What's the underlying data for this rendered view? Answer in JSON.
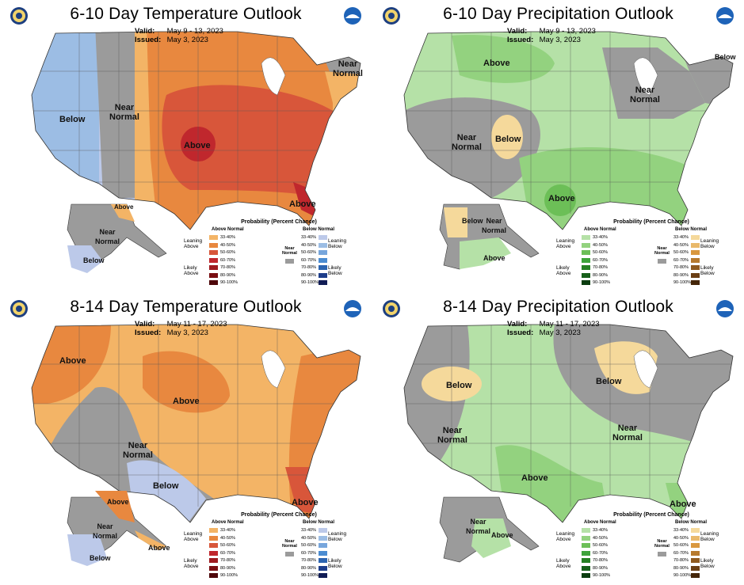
{
  "colors": {
    "gray": "#9b9b9b",
    "t_lean": "#f3b466",
    "t_40": "#e8883f",
    "t_50": "#d8563a",
    "t_60": "#c0272d",
    "t_70": "#9e1a1f",
    "t_80": "#7a0e12",
    "t_90": "#4e070a",
    "cold_33": "#bcc9e9",
    "cold_40": "#9cbde4",
    "cold_50": "#77a6dc",
    "cold_60": "#4b8cd1",
    "cold_70": "#2c64b0",
    "cold_80": "#1d3d8a",
    "cold_90": "#101c55",
    "wet_33": "#b5e1a7",
    "wet_40": "#93d27f",
    "wet_50": "#6cbf57",
    "wet_60": "#3ea33a",
    "wet_70": "#268023",
    "wet_80": "#17601a",
    "wet_90": "#0b3d10",
    "dry_33": "#f5d99b",
    "dry_40": "#e9b96b",
    "dry_50": "#d9983f",
    "dry_60": "#b77a2e",
    "dry_70": "#8f5a1f",
    "dry_80": "#6b3f14",
    "dry_90": "#442508"
  },
  "panels": [
    {
      "title": "6-10 Day Temperature Outlook",
      "valid_label": "Valid:",
      "valid_value": "May 9 - 13, 2023",
      "issued_label": "Issued:",
      "issued_value": "May 3, 2023",
      "labels": [
        "Below",
        "Near\nNormal",
        "Above",
        "Near\nNormal",
        "Above",
        "Above",
        "Near\nNormal",
        "Below"
      ],
      "legend": {
        "title": "Probability (Percent Chance)",
        "left_header": "Above Normal",
        "right_header": "Below Normal",
        "left_side_top": "Leaning\nAbove",
        "left_side_bottom": "Likely\nAbove",
        "right_side_top": "Leaning\nBelow",
        "right_side_bottom": "Likely\nBelow",
        "near_normal": "Near\nNormal",
        "bins": [
          "33-40%",
          "40-50%",
          "50-60%",
          "60-70%",
          "70-80%",
          "80-90%",
          "90-100%"
        ]
      }
    },
    {
      "title": "6-10 Day Precipitation Outlook",
      "valid_label": "Valid:",
      "valid_value": "May 9 - 13, 2023",
      "issued_label": "Issued:",
      "issued_value": "May 3, 2023",
      "labels": [
        "Above",
        "Near\nNormal",
        "Below",
        "Below",
        "Near\nNormal",
        "Above",
        "Below",
        "Near\nNormal",
        "Above"
      ],
      "legend": {
        "title": "Probability (Percent Chance)",
        "left_header": "Above Normal",
        "right_header": "Below Normal",
        "left_side_top": "Leaning\nAbove",
        "left_side_bottom": "Likely\nAbove",
        "right_side_top": "Leaning\nBelow",
        "right_side_bottom": "Likely\nBelow",
        "near_normal": "Near\nNormal",
        "bins": [
          "33-40%",
          "40-50%",
          "50-60%",
          "60-70%",
          "70-80%",
          "80-90%",
          "90-100%"
        ]
      }
    },
    {
      "title": "8-14 Day Temperature Outlook",
      "valid_label": "Valid:",
      "valid_value": "May 11 - 17, 2023",
      "issued_label": "Issued:",
      "issued_value": "May 3, 2023",
      "labels": [
        "Above",
        "Above",
        "Near\nNormal",
        "Below",
        "Above",
        "Above",
        "Near\nNormal",
        "Above",
        "Below"
      ],
      "legend": {
        "title": "Probability (Percent Chance)",
        "left_header": "Above Normal",
        "right_header": "Below Normal",
        "left_side_top": "Leaning\nAbove",
        "left_side_bottom": "Likely\nAbove",
        "right_side_top": "Leaning\nBelow",
        "right_side_bottom": "Likely\nBelow",
        "near_normal": "Near\nNormal",
        "bins": [
          "33-40%",
          "40-50%",
          "50-60%",
          "60-70%",
          "70-80%",
          "80-90%",
          "90-100%"
        ]
      }
    },
    {
      "title": "8-14 Day Precipitation Outlook",
      "valid_label": "Valid:",
      "valid_value": "May 11 - 17, 2023",
      "issued_label": "Issued:",
      "issued_value": "May 3, 2023",
      "labels": [
        "Below",
        "Near\nNormal",
        "Below",
        "Near\nNormal",
        "Above",
        "Above",
        "Near\nNormal",
        "Above"
      ],
      "legend": {
        "title": "Probability (Percent Chance)",
        "left_header": "Above Normal",
        "right_header": "Below Normal",
        "left_side_top": "Leaning\nAbove",
        "left_side_bottom": "Likely\nAbove",
        "right_side_top": "Leaning\nBelow",
        "right_side_bottom": "Likely\nBelow",
        "near_normal": "Near\nNormal",
        "bins": [
          "33-40%",
          "40-50%",
          "50-60%",
          "60-70%",
          "70-80%",
          "80-90%",
          "90-100%"
        ]
      }
    }
  ]
}
